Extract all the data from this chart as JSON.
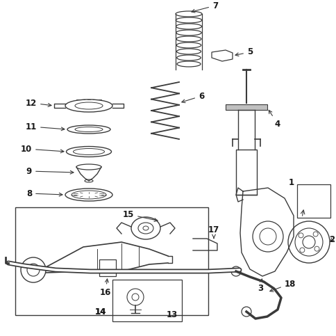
{
  "background_color": "#ffffff",
  "line_color": "#3a3a3a",
  "label_color": "#1a1a1a",
  "fig_width": 4.85,
  "fig_height": 4.83,
  "dpi": 100,
  "xlim": [
    0,
    485
  ],
  "ylim": [
    0,
    483
  ]
}
